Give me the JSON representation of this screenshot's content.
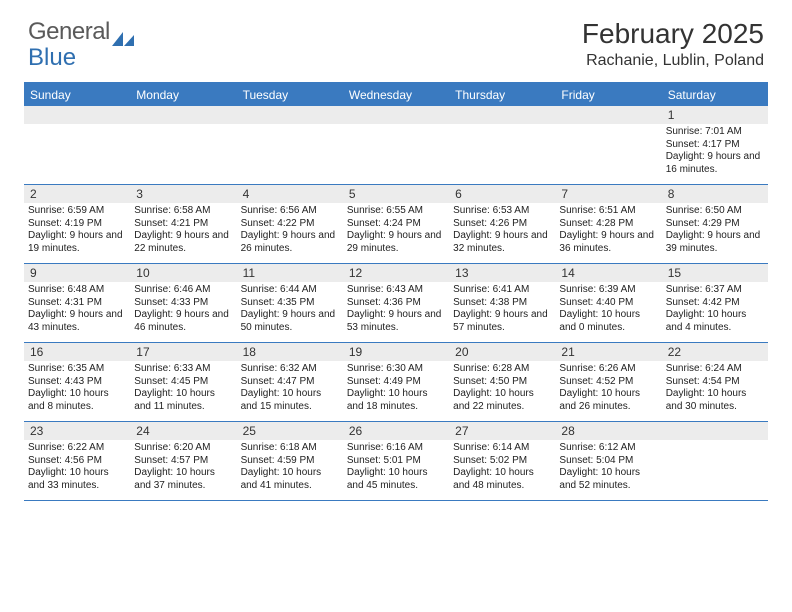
{
  "brand": {
    "part1": "General",
    "part2": "Blue",
    "text_color": "#5a5a5a",
    "accent_color": "#2f6fb0"
  },
  "title": {
    "month": "February 2025",
    "location": "Rachanie, Lublin, Poland"
  },
  "colors": {
    "header_bar": "#3a7ac0",
    "daynum_bg": "#ececec",
    "page_bg": "#ffffff"
  },
  "weekdays": [
    "Sunday",
    "Monday",
    "Tuesday",
    "Wednesday",
    "Thursday",
    "Friday",
    "Saturday"
  ],
  "weeks": [
    [
      {
        "n": "",
        "sunrise": "",
        "sunset": "",
        "daylight": ""
      },
      {
        "n": "",
        "sunrise": "",
        "sunset": "",
        "daylight": ""
      },
      {
        "n": "",
        "sunrise": "",
        "sunset": "",
        "daylight": ""
      },
      {
        "n": "",
        "sunrise": "",
        "sunset": "",
        "daylight": ""
      },
      {
        "n": "",
        "sunrise": "",
        "sunset": "",
        "daylight": ""
      },
      {
        "n": "",
        "sunrise": "",
        "sunset": "",
        "daylight": ""
      },
      {
        "n": "1",
        "sunrise": "Sunrise: 7:01 AM",
        "sunset": "Sunset: 4:17 PM",
        "daylight": "Daylight: 9 hours and 16 minutes."
      }
    ],
    [
      {
        "n": "2",
        "sunrise": "Sunrise: 6:59 AM",
        "sunset": "Sunset: 4:19 PM",
        "daylight": "Daylight: 9 hours and 19 minutes."
      },
      {
        "n": "3",
        "sunrise": "Sunrise: 6:58 AM",
        "sunset": "Sunset: 4:21 PM",
        "daylight": "Daylight: 9 hours and 22 minutes."
      },
      {
        "n": "4",
        "sunrise": "Sunrise: 6:56 AM",
        "sunset": "Sunset: 4:22 PM",
        "daylight": "Daylight: 9 hours and 26 minutes."
      },
      {
        "n": "5",
        "sunrise": "Sunrise: 6:55 AM",
        "sunset": "Sunset: 4:24 PM",
        "daylight": "Daylight: 9 hours and 29 minutes."
      },
      {
        "n": "6",
        "sunrise": "Sunrise: 6:53 AM",
        "sunset": "Sunset: 4:26 PM",
        "daylight": "Daylight: 9 hours and 32 minutes."
      },
      {
        "n": "7",
        "sunrise": "Sunrise: 6:51 AM",
        "sunset": "Sunset: 4:28 PM",
        "daylight": "Daylight: 9 hours and 36 minutes."
      },
      {
        "n": "8",
        "sunrise": "Sunrise: 6:50 AM",
        "sunset": "Sunset: 4:29 PM",
        "daylight": "Daylight: 9 hours and 39 minutes."
      }
    ],
    [
      {
        "n": "9",
        "sunrise": "Sunrise: 6:48 AM",
        "sunset": "Sunset: 4:31 PM",
        "daylight": "Daylight: 9 hours and 43 minutes."
      },
      {
        "n": "10",
        "sunrise": "Sunrise: 6:46 AM",
        "sunset": "Sunset: 4:33 PM",
        "daylight": "Daylight: 9 hours and 46 minutes."
      },
      {
        "n": "11",
        "sunrise": "Sunrise: 6:44 AM",
        "sunset": "Sunset: 4:35 PM",
        "daylight": "Daylight: 9 hours and 50 minutes."
      },
      {
        "n": "12",
        "sunrise": "Sunrise: 6:43 AM",
        "sunset": "Sunset: 4:36 PM",
        "daylight": "Daylight: 9 hours and 53 minutes."
      },
      {
        "n": "13",
        "sunrise": "Sunrise: 6:41 AM",
        "sunset": "Sunset: 4:38 PM",
        "daylight": "Daylight: 9 hours and 57 minutes."
      },
      {
        "n": "14",
        "sunrise": "Sunrise: 6:39 AM",
        "sunset": "Sunset: 4:40 PM",
        "daylight": "Daylight: 10 hours and 0 minutes."
      },
      {
        "n": "15",
        "sunrise": "Sunrise: 6:37 AM",
        "sunset": "Sunset: 4:42 PM",
        "daylight": "Daylight: 10 hours and 4 minutes."
      }
    ],
    [
      {
        "n": "16",
        "sunrise": "Sunrise: 6:35 AM",
        "sunset": "Sunset: 4:43 PM",
        "daylight": "Daylight: 10 hours and 8 minutes."
      },
      {
        "n": "17",
        "sunrise": "Sunrise: 6:33 AM",
        "sunset": "Sunset: 4:45 PM",
        "daylight": "Daylight: 10 hours and 11 minutes."
      },
      {
        "n": "18",
        "sunrise": "Sunrise: 6:32 AM",
        "sunset": "Sunset: 4:47 PM",
        "daylight": "Daylight: 10 hours and 15 minutes."
      },
      {
        "n": "19",
        "sunrise": "Sunrise: 6:30 AM",
        "sunset": "Sunset: 4:49 PM",
        "daylight": "Daylight: 10 hours and 18 minutes."
      },
      {
        "n": "20",
        "sunrise": "Sunrise: 6:28 AM",
        "sunset": "Sunset: 4:50 PM",
        "daylight": "Daylight: 10 hours and 22 minutes."
      },
      {
        "n": "21",
        "sunrise": "Sunrise: 6:26 AM",
        "sunset": "Sunset: 4:52 PM",
        "daylight": "Daylight: 10 hours and 26 minutes."
      },
      {
        "n": "22",
        "sunrise": "Sunrise: 6:24 AM",
        "sunset": "Sunset: 4:54 PM",
        "daylight": "Daylight: 10 hours and 30 minutes."
      }
    ],
    [
      {
        "n": "23",
        "sunrise": "Sunrise: 6:22 AM",
        "sunset": "Sunset: 4:56 PM",
        "daylight": "Daylight: 10 hours and 33 minutes."
      },
      {
        "n": "24",
        "sunrise": "Sunrise: 6:20 AM",
        "sunset": "Sunset: 4:57 PM",
        "daylight": "Daylight: 10 hours and 37 minutes."
      },
      {
        "n": "25",
        "sunrise": "Sunrise: 6:18 AM",
        "sunset": "Sunset: 4:59 PM",
        "daylight": "Daylight: 10 hours and 41 minutes."
      },
      {
        "n": "26",
        "sunrise": "Sunrise: 6:16 AM",
        "sunset": "Sunset: 5:01 PM",
        "daylight": "Daylight: 10 hours and 45 minutes."
      },
      {
        "n": "27",
        "sunrise": "Sunrise: 6:14 AM",
        "sunset": "Sunset: 5:02 PM",
        "daylight": "Daylight: 10 hours and 48 minutes."
      },
      {
        "n": "28",
        "sunrise": "Sunrise: 6:12 AM",
        "sunset": "Sunset: 5:04 PM",
        "daylight": "Daylight: 10 hours and 52 minutes."
      },
      {
        "n": "",
        "sunrise": "",
        "sunset": "",
        "daylight": ""
      }
    ]
  ]
}
